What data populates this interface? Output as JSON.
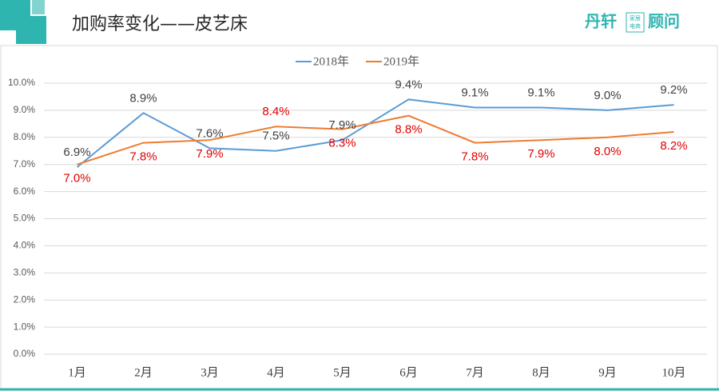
{
  "chart_data": {
    "type": "line",
    "title": "加购率变化——皮艺床",
    "categories": [
      "1月",
      "2月",
      "3月",
      "4月",
      "5月",
      "6月",
      "7月",
      "8月",
      "9月",
      "10月"
    ],
    "series": [
      {
        "name": "2018年",
        "color": "#5b9bd5",
        "label_color": "#404040",
        "values": [
          6.9,
          8.9,
          7.6,
          7.5,
          7.9,
          9.4,
          9.1,
          9.1,
          9.0,
          9.2
        ],
        "value_labels": [
          "6.9%",
          "8.9%",
          "7.6%",
          "7.5%",
          "7.9%",
          "9.4%",
          "9.1%",
          "9.1%",
          "9.0%",
          "9.2%"
        ]
      },
      {
        "name": "2019年",
        "color": "#ed7d31",
        "label_color": "#e00000",
        "values": [
          7.0,
          7.8,
          7.9,
          8.4,
          8.3,
          8.8,
          7.8,
          7.9,
          8.0,
          8.2
        ],
        "value_labels": [
          "7.0%",
          "7.8%",
          "7.9%",
          "8.4%",
          "8.3%",
          "8.8%",
          "7.8%",
          "7.9%",
          "8.0%",
          "8.2%"
        ]
      }
    ],
    "ylim": [
      0,
      10
    ],
    "yticks": [
      {
        "value": 0,
        "label": "0.0%"
      },
      {
        "value": 1,
        "label": "1.0%"
      },
      {
        "value": 2,
        "label": "2.0%"
      },
      {
        "value": 3,
        "label": "3.0%"
      },
      {
        "value": 4,
        "label": "4.0%"
      },
      {
        "value": 5,
        "label": "5.0%"
      },
      {
        "value": 6,
        "label": "6.0%"
      },
      {
        "value": 7,
        "label": "7.0%"
      },
      {
        "value": 8,
        "label": "8.0%"
      },
      {
        "value": 9,
        "label": "9.0%"
      },
      {
        "value": 10,
        "label": "10.0%"
      }
    ],
    "grid": true,
    "legend": "top"
  },
  "logo": {
    "left": "丹轩",
    "badge": [
      "家居",
      "电商"
    ],
    "right": "顾问"
  }
}
